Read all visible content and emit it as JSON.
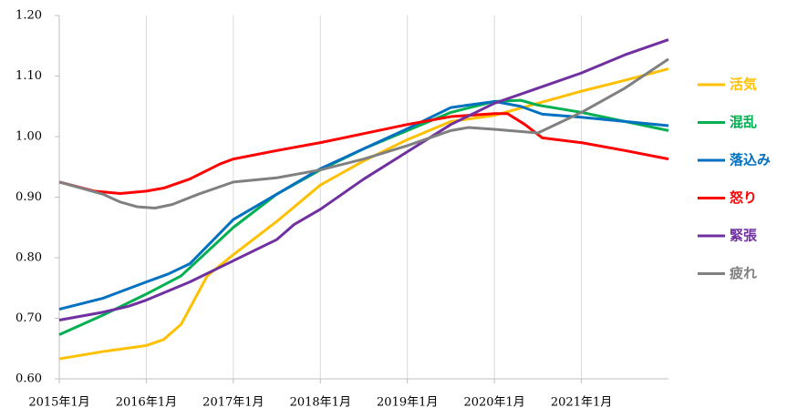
{
  "chart_data": {
    "type": "line",
    "xlim": [
      2015,
      2022
    ],
    "xticks": [
      {
        "value": 2015,
        "label": "2015年1月"
      },
      {
        "value": 2016,
        "label": "2016年1月"
      },
      {
        "value": 2017,
        "label": "2017年1月"
      },
      {
        "value": 2018,
        "label": "2018年1月"
      },
      {
        "value": 2019,
        "label": "2019年1月"
      },
      {
        "value": 2020,
        "label": "2020年1月"
      },
      {
        "value": 2021,
        "label": "2021年1月"
      }
    ],
    "ylim": [
      0.6,
      1.2
    ],
    "yticks": [
      {
        "value": 0.6,
        "label": "0.60"
      },
      {
        "value": 0.7,
        "label": "0.70"
      },
      {
        "value": 0.8,
        "label": "0.80"
      },
      {
        "value": 0.9,
        "label": "0.90"
      },
      {
        "value": 1.0,
        "label": "1.00"
      },
      {
        "value": 1.1,
        "label": "1.10"
      },
      {
        "value": 1.2,
        "label": "1.20"
      }
    ],
    "xgrid": true,
    "legend": "right",
    "series": [
      {
        "name": "活気",
        "color": "#FFC000",
        "x": [
          2015,
          2015.5,
          2016,
          2016.2,
          2016.4,
          2016.7,
          2017,
          2017.5,
          2018,
          2018.5,
          2019,
          2019.5,
          2020,
          2020.5,
          2021,
          2021.5,
          2022
        ],
        "values": [
          0.633,
          0.645,
          0.655,
          0.665,
          0.69,
          0.77,
          0.805,
          0.86,
          0.92,
          0.96,
          0.995,
          1.025,
          1.035,
          1.055,
          1.075,
          1.093,
          1.112
        ]
      },
      {
        "name": "混乱",
        "color": "#00B050",
        "x": [
          2015,
          2015.5,
          2016,
          2016.4,
          2017,
          2017.5,
          2018,
          2018.5,
          2019,
          2019.5,
          2020,
          2020.3,
          2020.5,
          2021,
          2021.5,
          2022
        ],
        "values": [
          0.673,
          0.705,
          0.74,
          0.77,
          0.85,
          0.905,
          0.945,
          0.98,
          1.01,
          1.04,
          1.058,
          1.06,
          1.052,
          1.04,
          1.025,
          1.01
        ]
      },
      {
        "name": "落込み",
        "color": "#0070C0",
        "x": [
          2015,
          2015.5,
          2016,
          2016.25,
          2016.5,
          2017,
          2017.5,
          2018,
          2018.5,
          2019,
          2019.5,
          2020,
          2020.3,
          2020.55,
          2021,
          2021.5,
          2022
        ],
        "values": [
          0.715,
          0.733,
          0.76,
          0.773,
          0.79,
          0.863,
          0.905,
          0.947,
          0.98,
          1.013,
          1.048,
          1.058,
          1.05,
          1.037,
          1.032,
          1.025,
          1.018
        ]
      },
      {
        "name": "怒り",
        "color": "#FF0000",
        "x": [
          2015,
          2015.4,
          2015.7,
          2016,
          2016.2,
          2016.5,
          2016.85,
          2017,
          2017.5,
          2018,
          2018.5,
          2019,
          2019.5,
          2020,
          2020.15,
          2020.35,
          2020.55,
          2021,
          2021.5,
          2022
        ],
        "values": [
          0.925,
          0.91,
          0.906,
          0.91,
          0.915,
          0.93,
          0.955,
          0.963,
          0.977,
          0.99,
          1.005,
          1.02,
          1.033,
          1.038,
          1.038,
          1.02,
          0.998,
          0.99,
          0.977,
          0.963
        ]
      },
      {
        "name": "緊張",
        "color": "#7030A0",
        "x": [
          2015,
          2015.5,
          2015.8,
          2016,
          2016.5,
          2017,
          2017.5,
          2017.7,
          2018,
          2018.5,
          2019,
          2019.5,
          2020,
          2020.5,
          2021,
          2021.5,
          2022
        ],
        "values": [
          0.697,
          0.71,
          0.72,
          0.73,
          0.76,
          0.795,
          0.83,
          0.855,
          0.88,
          0.93,
          0.975,
          1.02,
          1.055,
          1.08,
          1.105,
          1.135,
          1.16
        ]
      },
      {
        "name": "疲れ",
        "color": "#808080",
        "x": [
          2015,
          2015.5,
          2015.7,
          2015.9,
          2016.1,
          2016.3,
          2016.6,
          2017,
          2017.5,
          2018,
          2018.5,
          2019,
          2019.5,
          2019.7,
          2020,
          2020.5,
          2021,
          2021.5,
          2022
        ],
        "values": [
          0.925,
          0.905,
          0.892,
          0.884,
          0.882,
          0.888,
          0.905,
          0.925,
          0.932,
          0.945,
          0.963,
          0.985,
          1.01,
          1.015,
          1.012,
          1.006,
          1.04,
          1.08,
          1.128
        ]
      }
    ]
  }
}
